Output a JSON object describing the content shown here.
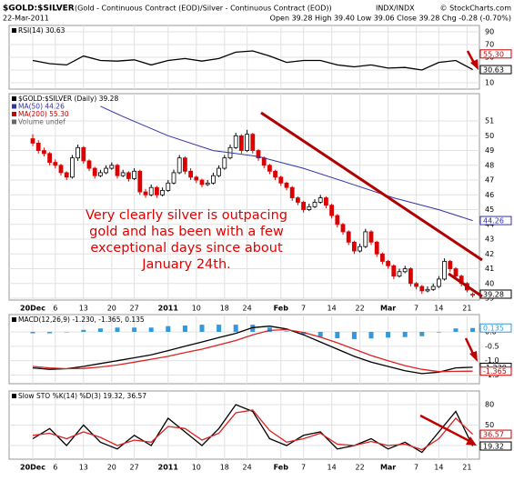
{
  "header": {
    "symbol": "$GOLD:$SILVER",
    "description": "(Gold - Continuous Contract (EOD)/Silver - Continuous Contract (EOD))",
    "exchange": "INDX/INDX",
    "copyright": "© StockCharts.com",
    "date": "22-Mar-2011",
    "quote": "Open 39.28  High 39.40  Low 39.06  Close 39.28  Chg -0.28 (-0.70%)"
  },
  "annotation": [
    "Very clearly silver is outpacing",
    "gold and has been with a few",
    "exceptional days since about",
    "January 24th."
  ],
  "chart_data": [
    {
      "type": "line",
      "legend": [
        {
          "text": "RSI(14) 30.63",
          "color": "#000000"
        }
      ],
      "ylim": [
        0,
        100
      ],
      "yticks": [
        90,
        70,
        50,
        30,
        10
      ],
      "right_labels": [
        {
          "value": 55.3,
          "label": "55.30",
          "color": "#cc0000"
        },
        {
          "value": 30.63,
          "label": "30.63",
          "color": "#000000"
        }
      ],
      "series": [
        {
          "color": "#000000",
          "x": [
            0,
            3,
            6,
            9,
            12,
            15,
            18,
            21,
            24,
            27,
            30,
            33,
            36,
            39,
            42,
            45,
            48,
            51,
            54,
            57,
            60,
            63,
            66,
            69,
            72,
            75,
            78
          ],
          "values": [
            45,
            40,
            38,
            52,
            45,
            44,
            46,
            38,
            45,
            48,
            44,
            48,
            58,
            60,
            52,
            42,
            45,
            45,
            38,
            35,
            38,
            33,
            34,
            30,
            42,
            45,
            30.63
          ]
        }
      ]
    },
    {
      "type": "candlestick",
      "legend": [
        {
          "text": "$GOLD:$SILVER (Daily) 39.28",
          "color": "#000000"
        },
        {
          "text": "MA(50) 44.26",
          "color": "#3333aa"
        },
        {
          "text": "MA(200) 55.30",
          "color": "#cc0000"
        },
        {
          "text": "Volume undef",
          "color": "#666666"
        }
      ],
      "ylim": [
        38.88,
        52.85
      ],
      "yticks": [
        51,
        50,
        49,
        48,
        47,
        46,
        45,
        44,
        43,
        42,
        41,
        40,
        39
      ],
      "xticks": [
        {
          "value": 0,
          "label": "20Dec"
        },
        {
          "value": 4,
          "label": "6"
        },
        {
          "value": 9,
          "label": "13"
        },
        {
          "value": 14,
          "label": "20"
        },
        {
          "value": 18,
          "label": "27"
        },
        {
          "value": 24,
          "label": "2011"
        },
        {
          "value": 29,
          "label": "10"
        },
        {
          "value": 34,
          "label": "18"
        },
        {
          "value": 38,
          "label": "24"
        },
        {
          "value": 44,
          "label": "Feb"
        },
        {
          "value": 48,
          "label": "7"
        },
        {
          "value": 53,
          "label": "14"
        },
        {
          "value": 58,
          "label": "22"
        },
        {
          "value": 63,
          "label": "Mar"
        },
        {
          "value": 68,
          "label": "7"
        },
        {
          "value": 72,
          "label": "14"
        },
        {
          "value": 77,
          "label": "21"
        }
      ],
      "right_labels": [
        {
          "value": 44.26,
          "label": "44.26",
          "color": "#3333aa"
        },
        {
          "value": 39.28,
          "label": "39.28",
          "color": "#000000"
        }
      ],
      "ohlc": [
        [
          49.8,
          50.1,
          49.3,
          49.5
        ],
        [
          49.5,
          49.7,
          48.8,
          49.0
        ],
        [
          49.0,
          49.2,
          48.6,
          48.8
        ],
        [
          48.8,
          48.9,
          48.0,
          48.2
        ],
        [
          48.2,
          48.4,
          47.8,
          48.0
        ],
        [
          48.0,
          48.1,
          47.3,
          47.5
        ],
        [
          47.5,
          47.6,
          47.0,
          47.2
        ],
        [
          47.2,
          48.7,
          47.1,
          48.5
        ],
        [
          48.5,
          49.4,
          48.3,
          49.2
        ],
        [
          49.2,
          49.3,
          48.1,
          48.3
        ],
        [
          48.3,
          48.4,
          47.6,
          47.8
        ],
        [
          47.8,
          47.9,
          47.1,
          47.3
        ],
        [
          47.3,
          47.7,
          47.2,
          47.5
        ],
        [
          47.5,
          48.0,
          47.4,
          47.8
        ],
        [
          47.8,
          48.2,
          47.7,
          48.0
        ],
        [
          48.0,
          48.1,
          47.1,
          47.3
        ],
        [
          47.3,
          47.7,
          47.2,
          47.5
        ],
        [
          47.5,
          47.6,
          46.9,
          47.1
        ],
        [
          47.1,
          47.8,
          47.0,
          47.6
        ],
        [
          47.6,
          47.7,
          46.0,
          46.2
        ],
        [
          46.2,
          46.4,
          45.8,
          46.0
        ],
        [
          46.0,
          46.7,
          45.9,
          46.5
        ],
        [
          46.5,
          46.6,
          45.8,
          46.0
        ],
        [
          46.0,
          46.5,
          45.9,
          46.3
        ],
        [
          46.3,
          47.0,
          46.2,
          46.8
        ],
        [
          46.8,
          47.7,
          46.7,
          47.5
        ],
        [
          47.5,
          48.7,
          47.4,
          48.5
        ],
        [
          48.5,
          48.6,
          47.4,
          47.6
        ],
        [
          47.6,
          47.8,
          47.0,
          47.2
        ],
        [
          47.2,
          47.3,
          46.8,
          47.0
        ],
        [
          47.0,
          47.1,
          46.5,
          46.7
        ],
        [
          46.7,
          47.0,
          46.6,
          46.8
        ],
        [
          46.8,
          47.5,
          46.7,
          47.3
        ],
        [
          47.3,
          48.0,
          47.2,
          47.8
        ],
        [
          47.8,
          48.7,
          47.7,
          48.5
        ],
        [
          48.5,
          49.4,
          48.4,
          49.2
        ],
        [
          49.2,
          50.2,
          49.1,
          50.0
        ],
        [
          50.0,
          50.1,
          48.8,
          49.0
        ],
        [
          49.0,
          50.4,
          48.9,
          50.1
        ],
        [
          50.1,
          50.2,
          48.8,
          49.0
        ],
        [
          49.0,
          49.1,
          48.3,
          48.5
        ],
        [
          48.5,
          48.6,
          47.8,
          48.0
        ],
        [
          48.0,
          48.1,
          47.4,
          47.6
        ],
        [
          47.6,
          47.7,
          47.0,
          47.2
        ],
        [
          47.2,
          47.3,
          46.6,
          46.8
        ],
        [
          46.8,
          46.9,
          46.3,
          46.5
        ],
        [
          46.5,
          46.6,
          45.6,
          45.8
        ],
        [
          45.8,
          45.9,
          45.3,
          45.5
        ],
        [
          45.5,
          45.6,
          44.8,
          45.0
        ],
        [
          45.0,
          45.4,
          44.9,
          45.2
        ],
        [
          45.2,
          45.7,
          45.1,
          45.5
        ],
        [
          45.5,
          46.0,
          45.4,
          45.8
        ],
        [
          45.8,
          45.9,
          45.1,
          45.3
        ],
        [
          45.3,
          45.4,
          44.4,
          44.6
        ],
        [
          44.6,
          44.7,
          43.8,
          44.0
        ],
        [
          44.0,
          44.1,
          43.3,
          43.5
        ],
        [
          43.5,
          43.6,
          42.6,
          42.8
        ],
        [
          42.8,
          42.9,
          42.0,
          42.2
        ],
        [
          42.2,
          42.7,
          42.1,
          42.5
        ],
        [
          42.5,
          43.7,
          42.4,
          43.5
        ],
        [
          43.5,
          43.6,
          42.6,
          42.8
        ],
        [
          42.8,
          42.9,
          41.8,
          42.0
        ],
        [
          42.0,
          42.1,
          41.3,
          41.5
        ],
        [
          41.5,
          41.6,
          41.0,
          41.2
        ],
        [
          41.2,
          41.3,
          40.3,
          40.5
        ],
        [
          40.5,
          41.0,
          40.4,
          40.8
        ],
        [
          40.8,
          41.2,
          40.7,
          41.0
        ],
        [
          41.0,
          41.1,
          39.8,
          40.0
        ],
        [
          40.0,
          40.1,
          39.6,
          39.8
        ],
        [
          39.8,
          39.9,
          39.3,
          39.5
        ],
        [
          39.5,
          39.8,
          39.4,
          39.6
        ],
        [
          39.6,
          40.0,
          39.5,
          39.8
        ],
        [
          39.8,
          40.5,
          39.7,
          40.3
        ],
        [
          40.3,
          41.7,
          40.2,
          41.5
        ],
        [
          41.5,
          41.6,
          40.8,
          41.0
        ],
        [
          41.0,
          41.1,
          40.3,
          40.5
        ],
        [
          40.5,
          40.6,
          39.8,
          40.0
        ],
        [
          40.0,
          40.1,
          39.4,
          39.56
        ],
        [
          39.28,
          39.4,
          39.06,
          39.28
        ]
      ],
      "series": [
        {
          "color": "#3333aa",
          "x": [
            12,
            16,
            24,
            32,
            40,
            48,
            56,
            64,
            72,
            78
          ],
          "values": [
            52.0,
            51.3,
            50.0,
            49.0,
            48.6,
            47.8,
            46.8,
            45.8,
            45.0,
            44.26
          ]
        }
      ]
    },
    {
      "type": "line",
      "legend": [
        {
          "text": "MACD(12,26,9) -1.230, -1.365, 0.135",
          "color": "#000000"
        }
      ],
      "ylim": [
        -1.8,
        0.6
      ],
      "yticks": [
        {
          "value": 0,
          "label": "0.0"
        },
        -0.5,
        {
          "value": -1,
          "label": "-1.0"
        },
        -1.5
      ],
      "right_labels": [
        {
          "value": 0.135,
          "label": "0.135",
          "color": "#3399dd"
        },
        {
          "value": -1.23,
          "label": "-1.230",
          "color": "#000000"
        },
        {
          "value": -1.365,
          "label": "-1.365",
          "color": "#cc0000"
        }
      ],
      "histogram": {
        "color": "#3399dd",
        "x": [
          0,
          3,
          6,
          9,
          12,
          15,
          18,
          21,
          24,
          27,
          30,
          33,
          36,
          39,
          42,
          45,
          48,
          51,
          54,
          57,
          60,
          63,
          66,
          69,
          72,
          75,
          78
        ],
        "values": [
          -0.05,
          -0.05,
          0,
          0.07,
          0.12,
          0.15,
          0.15,
          0.15,
          0.2,
          0.22,
          0.25,
          0.25,
          0.25,
          0.25,
          0.15,
          0.02,
          -0.08,
          -0.17,
          -0.22,
          -0.25,
          -0.23,
          -0.2,
          -0.18,
          -0.15,
          -0.02,
          0.12,
          0.135
        ]
      },
      "series": [
        {
          "color": "#000000",
          "x": [
            0,
            3,
            6,
            9,
            12,
            15,
            18,
            21,
            24,
            27,
            30,
            33,
            36,
            39,
            42,
            45,
            48,
            51,
            54,
            57,
            60,
            63,
            66,
            69,
            72,
            75,
            78
          ],
          "values": [
            -1.25,
            -1.3,
            -1.28,
            -1.2,
            -1.1,
            -1.0,
            -0.9,
            -0.8,
            -0.65,
            -0.5,
            -0.35,
            -0.2,
            -0.05,
            0.15,
            0.2,
            0.1,
            -0.1,
            -0.35,
            -0.6,
            -0.85,
            -1.05,
            -1.2,
            -1.35,
            -1.45,
            -1.4,
            -1.25,
            -1.23
          ]
        },
        {
          "color": "#dd2222",
          "x": [
            0,
            3,
            6,
            9,
            12,
            15,
            18,
            21,
            24,
            27,
            30,
            33,
            36,
            39,
            42,
            45,
            48,
            51,
            54,
            57,
            60,
            63,
            66,
            69,
            72,
            75,
            78
          ],
          "values": [
            -1.2,
            -1.25,
            -1.28,
            -1.27,
            -1.22,
            -1.15,
            -1.05,
            -0.95,
            -0.85,
            -0.72,
            -0.6,
            -0.45,
            -0.3,
            -0.1,
            0.05,
            0.08,
            -0.02,
            -0.18,
            -0.38,
            -0.6,
            -0.82,
            -1.0,
            -1.17,
            -1.3,
            -1.38,
            -1.37,
            -1.365
          ]
        }
      ]
    },
    {
      "type": "line",
      "legend": [
        {
          "text": "Slow STO %K(14) %D(3) 19.32, 36.57",
          "color": "#000000"
        }
      ],
      "ylim": [
        0,
        100
      ],
      "yticks": [
        80,
        50,
        20
      ],
      "right_labels": [
        {
          "value": 36.57,
          "label": "36.57",
          "color": "#cc0000"
        },
        {
          "value": 19.32,
          "label": "19.32",
          "color": "#000000"
        }
      ],
      "series": [
        {
          "color": "#000000",
          "x": [
            0,
            3,
            6,
            9,
            12,
            15,
            18,
            21,
            24,
            27,
            30,
            33,
            36,
            39,
            42,
            45,
            48,
            51,
            54,
            57,
            60,
            63,
            66,
            69,
            72,
            75,
            78
          ],
          "values": [
            30,
            45,
            20,
            50,
            25,
            15,
            35,
            20,
            60,
            40,
            20,
            45,
            80,
            70,
            30,
            20,
            35,
            40,
            15,
            20,
            30,
            15,
            25,
            10,
            40,
            70,
            19.32
          ]
        },
        {
          "color": "#dd2222",
          "x": [
            0,
            3,
            6,
            9,
            12,
            15,
            18,
            21,
            24,
            27,
            30,
            33,
            36,
            39,
            42,
            45,
            48,
            51,
            54,
            57,
            60,
            63,
            66,
            69,
            72,
            75,
            78
          ],
          "values": [
            35,
            38,
            30,
            40,
            32,
            20,
            28,
            25,
            48,
            45,
            28,
            38,
            68,
            72,
            42,
            25,
            30,
            38,
            22,
            20,
            26,
            20,
            22,
            14,
            30,
            60,
            36.57
          ]
        }
      ]
    }
  ]
}
